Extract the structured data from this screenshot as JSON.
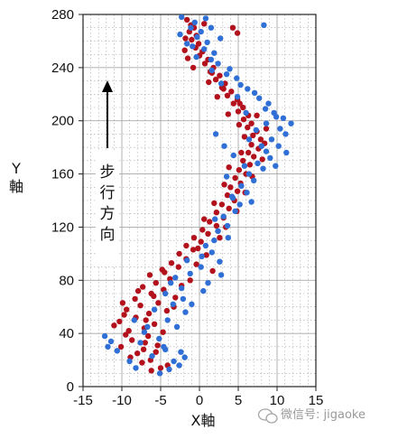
{
  "chart_data": {
    "type": "scatter",
    "title": "",
    "xlabel": "X軸",
    "ylabel": [
      "Y",
      "軸"
    ],
    "xlim": [
      -15,
      15
    ],
    "ylim": [
      0,
      280
    ],
    "x_ticks": [
      -15,
      -10,
      -5,
      0,
      5,
      10,
      15
    ],
    "y_ticks": [
      0,
      40,
      80,
      120,
      160,
      200,
      240,
      280
    ],
    "grid": true,
    "annotation": {
      "arrow": "up",
      "text": [
        "步",
        "行",
        "方",
        "向"
      ]
    },
    "colors": {
      "red": "#b3121d",
      "blue": "#2f6fd6",
      "grid": "#a8a8a8",
      "axis": "#222222"
    },
    "series": [
      {
        "color_key": "red",
        "points": [
          [
            -6.2,
            12
          ],
          [
            -5.0,
            14
          ],
          [
            -7.4,
            18
          ],
          [
            -6.3,
            20
          ],
          [
            -8.0,
            25
          ],
          [
            -7.2,
            28
          ],
          [
            -5.4,
            31
          ],
          [
            -8.7,
            35
          ],
          [
            -6.6,
            38
          ],
          [
            -9.1,
            42
          ],
          [
            -7.1,
            44
          ],
          [
            -5.8,
            47
          ],
          [
            -10.3,
            49
          ],
          [
            -8.2,
            52
          ],
          [
            -6.5,
            55
          ],
          [
            -9.4,
            58
          ],
          [
            -7.6,
            61
          ],
          [
            -5.3,
            63
          ],
          [
            -8.3,
            66
          ],
          [
            -6.2,
            70
          ],
          [
            -4.6,
            73
          ],
          [
            -7.3,
            75
          ],
          [
            -5.6,
            78
          ],
          [
            -3.8,
            81
          ],
          [
            -6.4,
            84
          ],
          [
            -4.5,
            86
          ],
          [
            -2.7,
            90
          ],
          [
            -3.6,
            93
          ],
          [
            -1.7,
            96
          ],
          [
            -2.6,
            100
          ],
          [
            -0.8,
            103
          ],
          [
            -1.7,
            106
          ],
          [
            0.2,
            109
          ],
          [
            -0.7,
            112
          ],
          [
            1.1,
            115
          ],
          [
            0.4,
            118
          ],
          [
            2.2,
            121
          ],
          [
            1.3,
            124
          ],
          [
            3.1,
            127
          ],
          [
            2.2,
            131
          ],
          [
            3.8,
            134
          ],
          [
            2.9,
            137
          ],
          [
            4.5,
            140
          ],
          [
            3.6,
            144
          ],
          [
            4.9,
            147
          ],
          [
            4.0,
            150
          ],
          [
            5.3,
            153
          ],
          [
            4.6,
            157
          ],
          [
            6.0,
            160
          ],
          [
            5.1,
            163
          ],
          [
            6.5,
            167
          ],
          [
            5.6,
            170
          ],
          [
            7.0,
            173
          ],
          [
            6.3,
            176
          ],
          [
            7.6,
            179
          ],
          [
            6.7,
            182
          ],
          [
            7.9,
            186
          ],
          [
            6.9,
            189
          ],
          [
            7.4,
            192
          ],
          [
            6.2,
            195
          ],
          [
            6.7,
            198
          ],
          [
            5.7,
            201
          ],
          [
            6.3,
            204
          ],
          [
            5.0,
            207
          ],
          [
            5.6,
            210
          ],
          [
            4.4,
            213
          ],
          [
            4.9,
            216
          ],
          [
            3.6,
            219
          ],
          [
            4.1,
            222
          ],
          [
            2.9,
            225
          ],
          [
            3.3,
            228
          ],
          [
            2.1,
            231
          ],
          [
            2.6,
            234
          ],
          [
            1.4,
            237
          ],
          [
            1.8,
            240
          ],
          [
            0.7,
            243
          ],
          [
            1.1,
            246
          ],
          [
            0.0,
            249
          ],
          [
            0.4,
            252
          ],
          [
            -0.5,
            255
          ],
          [
            -0.1,
            258
          ],
          [
            -1.0,
            261
          ],
          [
            -0.4,
            264
          ],
          [
            -1.3,
            267
          ],
          [
            -0.7,
            270
          ],
          [
            0.6,
            273
          ],
          [
            -1.6,
            276
          ],
          [
            4.3,
            270
          ],
          [
            4.9,
            266
          ],
          [
            -4.1,
            16
          ],
          [
            -8.9,
            22
          ],
          [
            -10.1,
            30
          ],
          [
            -9.5,
            39
          ],
          [
            -4.7,
            41
          ],
          [
            -11.0,
            46
          ],
          [
            -6.9,
            50
          ],
          [
            -4.2,
            57
          ],
          [
            -9.9,
            63
          ],
          [
            -3.1,
            67
          ],
          [
            -7.9,
            72
          ],
          [
            -2.3,
            76
          ],
          [
            -4.8,
            88
          ],
          [
            -0.4,
            92
          ],
          [
            0.9,
            99
          ],
          [
            -0.2,
            104
          ],
          [
            2.6,
            112
          ],
          [
            3.4,
            120
          ],
          [
            0.6,
            126
          ],
          [
            4.8,
            132
          ],
          [
            1.9,
            138
          ],
          [
            5.9,
            146
          ],
          [
            3.2,
            152
          ],
          [
            6.8,
            158
          ],
          [
            3.8,
            165
          ],
          [
            8.1,
            171
          ],
          [
            5.4,
            176
          ],
          [
            8.4,
            183
          ],
          [
            5.8,
            188
          ],
          [
            8.6,
            194
          ],
          [
            5.1,
            197
          ],
          [
            7.4,
            204
          ],
          [
            3.7,
            205
          ],
          [
            5.2,
            213
          ],
          [
            2.3,
            218
          ],
          [
            3.1,
            224
          ],
          [
            1.2,
            229
          ],
          [
            1.6,
            236
          ],
          [
            -0.8,
            240
          ],
          [
            -1.5,
            247
          ],
          [
            -1.9,
            253
          ],
          [
            -1.8,
            262
          ],
          [
            -1.1,
            272
          ],
          [
            -5.6,
            26
          ],
          [
            -7.0,
            33
          ],
          [
            -9.7,
            54
          ],
          [
            -3.3,
            60
          ],
          [
            -5.9,
            68
          ],
          [
            -1.2,
            80
          ],
          [
            1.7,
            87
          ]
        ]
      },
      {
        "color_key": "blue",
        "points": [
          [
            -5.1,
            10
          ],
          [
            -3.9,
            13
          ],
          [
            -2.6,
            16
          ],
          [
            -3.3,
            19
          ],
          [
            -1.9,
            22
          ],
          [
            -2.4,
            26
          ],
          [
            -12.2,
            38
          ],
          [
            -11.4,
            34
          ],
          [
            -11.8,
            30
          ],
          [
            -10.6,
            27
          ],
          [
            -6.1,
            23
          ],
          [
            -4.4,
            28
          ],
          [
            -7.6,
            33
          ],
          [
            -5.2,
            36
          ],
          [
            -6.7,
            45
          ],
          [
            -4.1,
            50
          ],
          [
            -5.8,
            58
          ],
          [
            -3.4,
            62
          ],
          [
            -4.4,
            70
          ],
          [
            -2.3,
            74
          ],
          [
            -3.1,
            82
          ],
          [
            -1.2,
            85
          ],
          [
            -1.6,
            95
          ],
          [
            0.3,
            98
          ],
          [
            0.8,
            106
          ],
          [
            1.9,
            110
          ],
          [
            2.4,
            117
          ],
          [
            3.6,
            121
          ],
          [
            3.1,
            128
          ],
          [
            4.6,
            132
          ],
          [
            5.2,
            137
          ],
          [
            4.3,
            142
          ],
          [
            6.1,
            146
          ],
          [
            5.4,
            151
          ],
          [
            7.0,
            155
          ],
          [
            6.4,
            160
          ],
          [
            8.2,
            164
          ],
          [
            7.5,
            168
          ],
          [
            9.1,
            172
          ],
          [
            8.6,
            177
          ],
          [
            10.2,
            181
          ],
          [
            9.3,
            186
          ],
          [
            11.1,
            190
          ],
          [
            10.4,
            194
          ],
          [
            11.8,
            198
          ],
          [
            10.8,
            202
          ],
          [
            9.6,
            206
          ],
          [
            8.5,
            209
          ],
          [
            8.9,
            213
          ],
          [
            7.7,
            217
          ],
          [
            7.1,
            221
          ],
          [
            6.2,
            224
          ],
          [
            5.3,
            227
          ],
          [
            4.8,
            232
          ],
          [
            3.5,
            235
          ],
          [
            3.9,
            239
          ],
          [
            2.4,
            243
          ],
          [
            1.5,
            246
          ],
          [
            1.9,
            251
          ],
          [
            0.6,
            254
          ],
          [
            1.0,
            259
          ],
          [
            -0.3,
            263
          ],
          [
            0.2,
            267
          ],
          [
            -1.1,
            270
          ],
          [
            -0.6,
            274
          ],
          [
            0.8,
            277
          ],
          [
            -2.3,
            278
          ],
          [
            8.3,
            272
          ],
          [
            2.7,
            262
          ],
          [
            1.5,
            270
          ],
          [
            -8.2,
            14
          ],
          [
            -9.0,
            19
          ],
          [
            -7.1,
            41
          ],
          [
            -2.9,
            45
          ],
          [
            -8.4,
            50
          ],
          [
            -1.8,
            56
          ],
          [
            -2.1,
            66
          ],
          [
            1.1,
            78
          ],
          [
            0.2,
            90
          ],
          [
            2.6,
            94
          ],
          [
            1.6,
            101
          ],
          [
            3.7,
            112
          ],
          [
            2.0,
            126
          ],
          [
            4.2,
            143
          ],
          [
            6.7,
            139
          ],
          [
            3.5,
            158
          ],
          [
            5.8,
            166
          ],
          [
            8.0,
            181
          ],
          [
            6.4,
            186
          ],
          [
            9.8,
            166
          ],
          [
            7.3,
            193
          ],
          [
            8.6,
            198
          ],
          [
            6.0,
            206
          ],
          [
            4.9,
            218
          ],
          [
            2.8,
            228
          ],
          [
            1.6,
            238
          ],
          [
            -0.4,
            248
          ],
          [
            -1.6,
            258
          ],
          [
            -2.5,
            265
          ],
          [
            -0.9,
            256
          ],
          [
            4.4,
            174
          ],
          [
            3.2,
            181
          ],
          [
            2.1,
            190
          ],
          [
            9.9,
            203
          ],
          [
            11.2,
            176
          ],
          [
            -4.6,
            30
          ],
          [
            -1.0,
            62
          ],
          [
            -3.7,
            78
          ],
          [
            0.5,
            72
          ],
          [
            2.8,
            84
          ]
        ]
      }
    ]
  },
  "watermark": {
    "text": "微信号: jigaoke"
  }
}
